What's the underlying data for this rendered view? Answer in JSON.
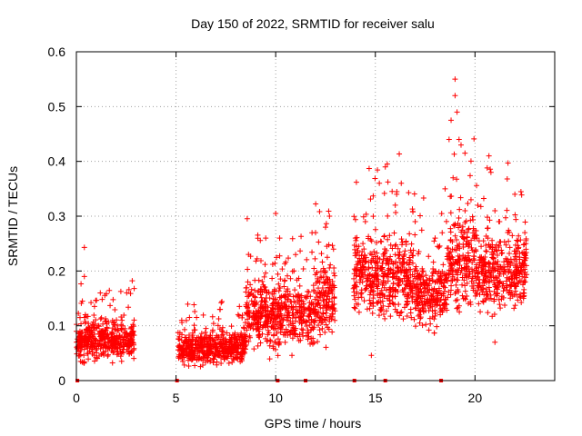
{
  "chart_data": {
    "type": "scatter",
    "title": "Day 150 of 2022, SRMTID for receiver salu",
    "xlabel": "GPS time / hours",
    "ylabel": "SRMTID / TECUs",
    "xlim": [
      0,
      24
    ],
    "ylim": [
      0,
      0.6
    ],
    "grid": true,
    "marker": "+",
    "color": "#ff0000",
    "x_ticks": [
      0,
      5,
      10,
      15,
      20
    ],
    "x_tick_labels": [
      "0",
      "5",
      "10",
      "15",
      "20"
    ],
    "y_ticks": [
      0,
      0.1,
      0.2,
      0.3,
      0.4,
      0.5,
      0.6
    ],
    "y_tick_labels": [
      "0",
      "0.1",
      "0.2",
      "0.3",
      "0.4",
      "0.5",
      "0.6"
    ],
    "series": [
      {
        "name": "SRMTID",
        "segments": [
          {
            "x_start": 0.0,
            "x_end": 2.9,
            "mean": 0.075,
            "spread": 0.03
          },
          {
            "x_start": 5.1,
            "x_end": 8.5,
            "mean": 0.06,
            "spread": 0.025
          },
          {
            "x_start": 8.5,
            "x_end": 12.0,
            "mean": 0.12,
            "spread": 0.05
          },
          {
            "x_start": 12.0,
            "x_end": 13.0,
            "mean": 0.15,
            "spread": 0.06
          },
          {
            "x_start": 13.9,
            "x_end": 17.0,
            "mean": 0.19,
            "spread": 0.06
          },
          {
            "x_start": 17.0,
            "x_end": 18.6,
            "mean": 0.16,
            "spread": 0.05
          },
          {
            "x_start": 18.6,
            "x_end": 20.0,
            "mean": 0.22,
            "spread": 0.07
          },
          {
            "x_start": 20.0,
            "x_end": 22.6,
            "mean": 0.2,
            "spread": 0.06
          }
        ],
        "points": [
          [
            0.4,
            0.243
          ],
          [
            0.4,
            0.19
          ],
          [
            0.3,
            0.145
          ],
          [
            1.2,
            0.16
          ],
          [
            2.9,
            0.168
          ],
          [
            8.6,
            0.18
          ],
          [
            9.5,
            0.26
          ],
          [
            10.0,
            0.305
          ],
          [
            10.2,
            0.26
          ],
          [
            11.0,
            0.23
          ],
          [
            12.0,
            0.27
          ],
          [
            12.5,
            0.28
          ],
          [
            12.7,
            0.3
          ],
          [
            14.0,
            0.26
          ],
          [
            14.5,
            0.29
          ],
          [
            15.2,
            0.36
          ],
          [
            15.5,
            0.39
          ],
          [
            15.6,
            0.395
          ],
          [
            16.0,
            0.32
          ],
          [
            16.3,
            0.36
          ],
          [
            17.0,
            0.29
          ],
          [
            18.0,
            0.26
          ],
          [
            18.5,
            0.35
          ],
          [
            18.7,
            0.44
          ],
          [
            18.8,
            0.475
          ],
          [
            18.9,
            0.37
          ],
          [
            19.0,
            0.55
          ],
          [
            19.0,
            0.52
          ],
          [
            19.1,
            0.49
          ],
          [
            19.2,
            0.44
          ],
          [
            19.3,
            0.43
          ],
          [
            19.8,
            0.33
          ],
          [
            20.1,
            0.26
          ],
          [
            20.7,
            0.41
          ],
          [
            20.8,
            0.38
          ],
          [
            21.0,
            0.31
          ],
          [
            21.2,
            0.29
          ],
          [
            22.0,
            0.34
          ],
          [
            22.5,
            0.27
          ],
          [
            21.0,
            0.07
          ],
          [
            14.8,
            0.046
          ],
          [
            16.0,
            0.23
          ],
          [
            19.5,
            0.31
          ],
          [
            0.2,
            0.065
          ],
          [
            0.6,
            0.08
          ],
          [
            5.3,
            0.04
          ],
          [
            6.5,
            0.095
          ],
          [
            7.2,
            0.13
          ],
          [
            9.9,
            0.14
          ],
          [
            11.3,
            0.11
          ]
        ]
      }
    ],
    "zero_markers_x": [
      0.05,
      5.05,
      10.1,
      11.5,
      13.95,
      15.5,
      18.3
    ]
  }
}
